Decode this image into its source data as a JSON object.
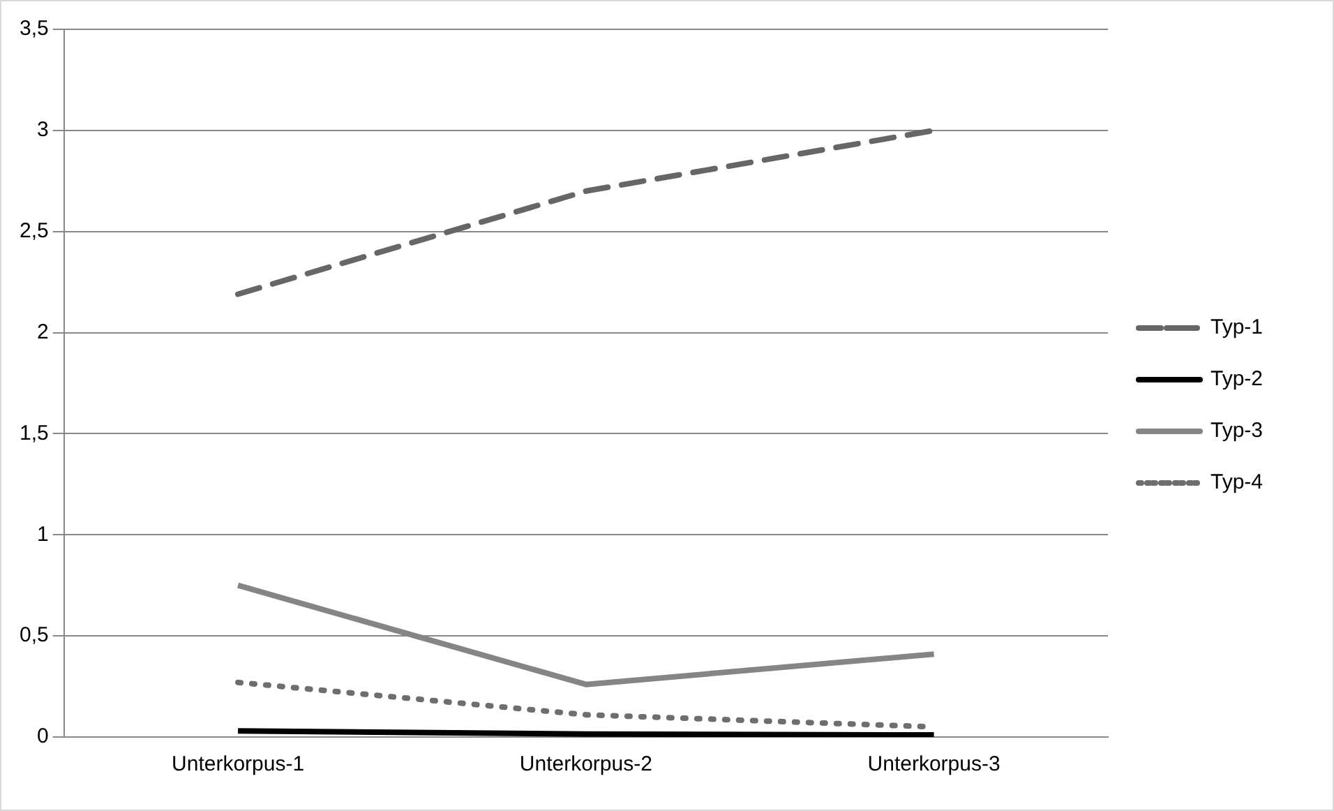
{
  "chart_data": {
    "type": "line",
    "categories": [
      "Unterkorpus-1",
      "Unterkorpus-2",
      "Unterkorpus-3"
    ],
    "series": [
      {
        "name": "Typ-1",
        "color": "#666666",
        "line_style": "dashed",
        "values": [
          2.19,
          2.7,
          3.0
        ]
      },
      {
        "name": "Typ-2",
        "color": "#000000",
        "line_style": "solid",
        "values": [
          0.03,
          0.015,
          0.01
        ]
      },
      {
        "name": "Typ-3",
        "color": "#858585",
        "line_style": "solid",
        "values": [
          0.75,
          0.26,
          0.41
        ]
      },
      {
        "name": "Typ-4",
        "color": "#6e6e6e",
        "line_style": "dotted",
        "values": [
          0.27,
          0.11,
          0.05
        ]
      }
    ],
    "ylim": [
      0,
      3.5
    ],
    "yticks": [
      0,
      {
        "value": 0.5,
        "label": "0,5"
      },
      1,
      {
        "value": 1.5,
        "label": "1,5"
      },
      2,
      {
        "value": 2.5,
        "label": "2,5"
      },
      3,
      {
        "value": 3.5,
        "label": "3,5"
      }
    ],
    "grid": "y",
    "legend": "right",
    "marker": "none"
  }
}
